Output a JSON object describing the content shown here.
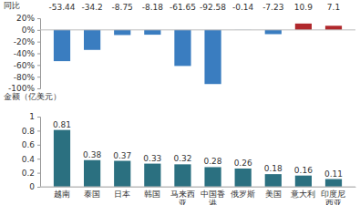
{
  "chart_data": [
    {
      "type": "bar",
      "y_label": "同比",
      "values": [
        -53.44,
        -34.2,
        -8.75,
        -8.18,
        -61.65,
        -92.58,
        -0.14,
        -7.23,
        10.9,
        7.1
      ],
      "colors": [
        "#3a7dc0",
        "#3a7dc0",
        "#3a7dc0",
        "#3a7dc0",
        "#3a7dc0",
        "#3a7dc0",
        "#3a7dc0",
        "#3a7dc0",
        "#b0282c",
        "#b0282c"
      ],
      "ylim": [
        -100,
        20
      ],
      "yticks": [
        {
          "value": -100,
          "label": "-100%"
        },
        {
          "value": -80,
          "label": "-80%"
        },
        {
          "value": -60,
          "label": "-60%"
        },
        {
          "value": -40,
          "label": "-40%"
        },
        {
          "value": -20,
          "label": "-20%"
        },
        {
          "value": 0,
          "label": "0%"
        },
        {
          "value": 20,
          "label": "20%"
        }
      ],
      "grid": false,
      "data_labels": true,
      "tick_labels": "y"
    },
    {
      "type": "bar",
      "y_label": "金额（亿美元）",
      "categories": [
        "越南",
        "泰国",
        "日本",
        "韩国",
        "马来西亚",
        "中国香港",
        "俄罗斯",
        "美国",
        "意大利",
        "印度尼西亚"
      ],
      "values": [
        0.81,
        0.38,
        0.37,
        0.33,
        0.32,
        0.28,
        0.26,
        0.18,
        0.16,
        0.11
      ],
      "color": "#2b7080",
      "ylim": [
        0,
        1
      ],
      "yticks": [
        0,
        0.2,
        0.4,
        0.6,
        0.8,
        1
      ],
      "grid": false,
      "data_labels": true
    }
  ]
}
